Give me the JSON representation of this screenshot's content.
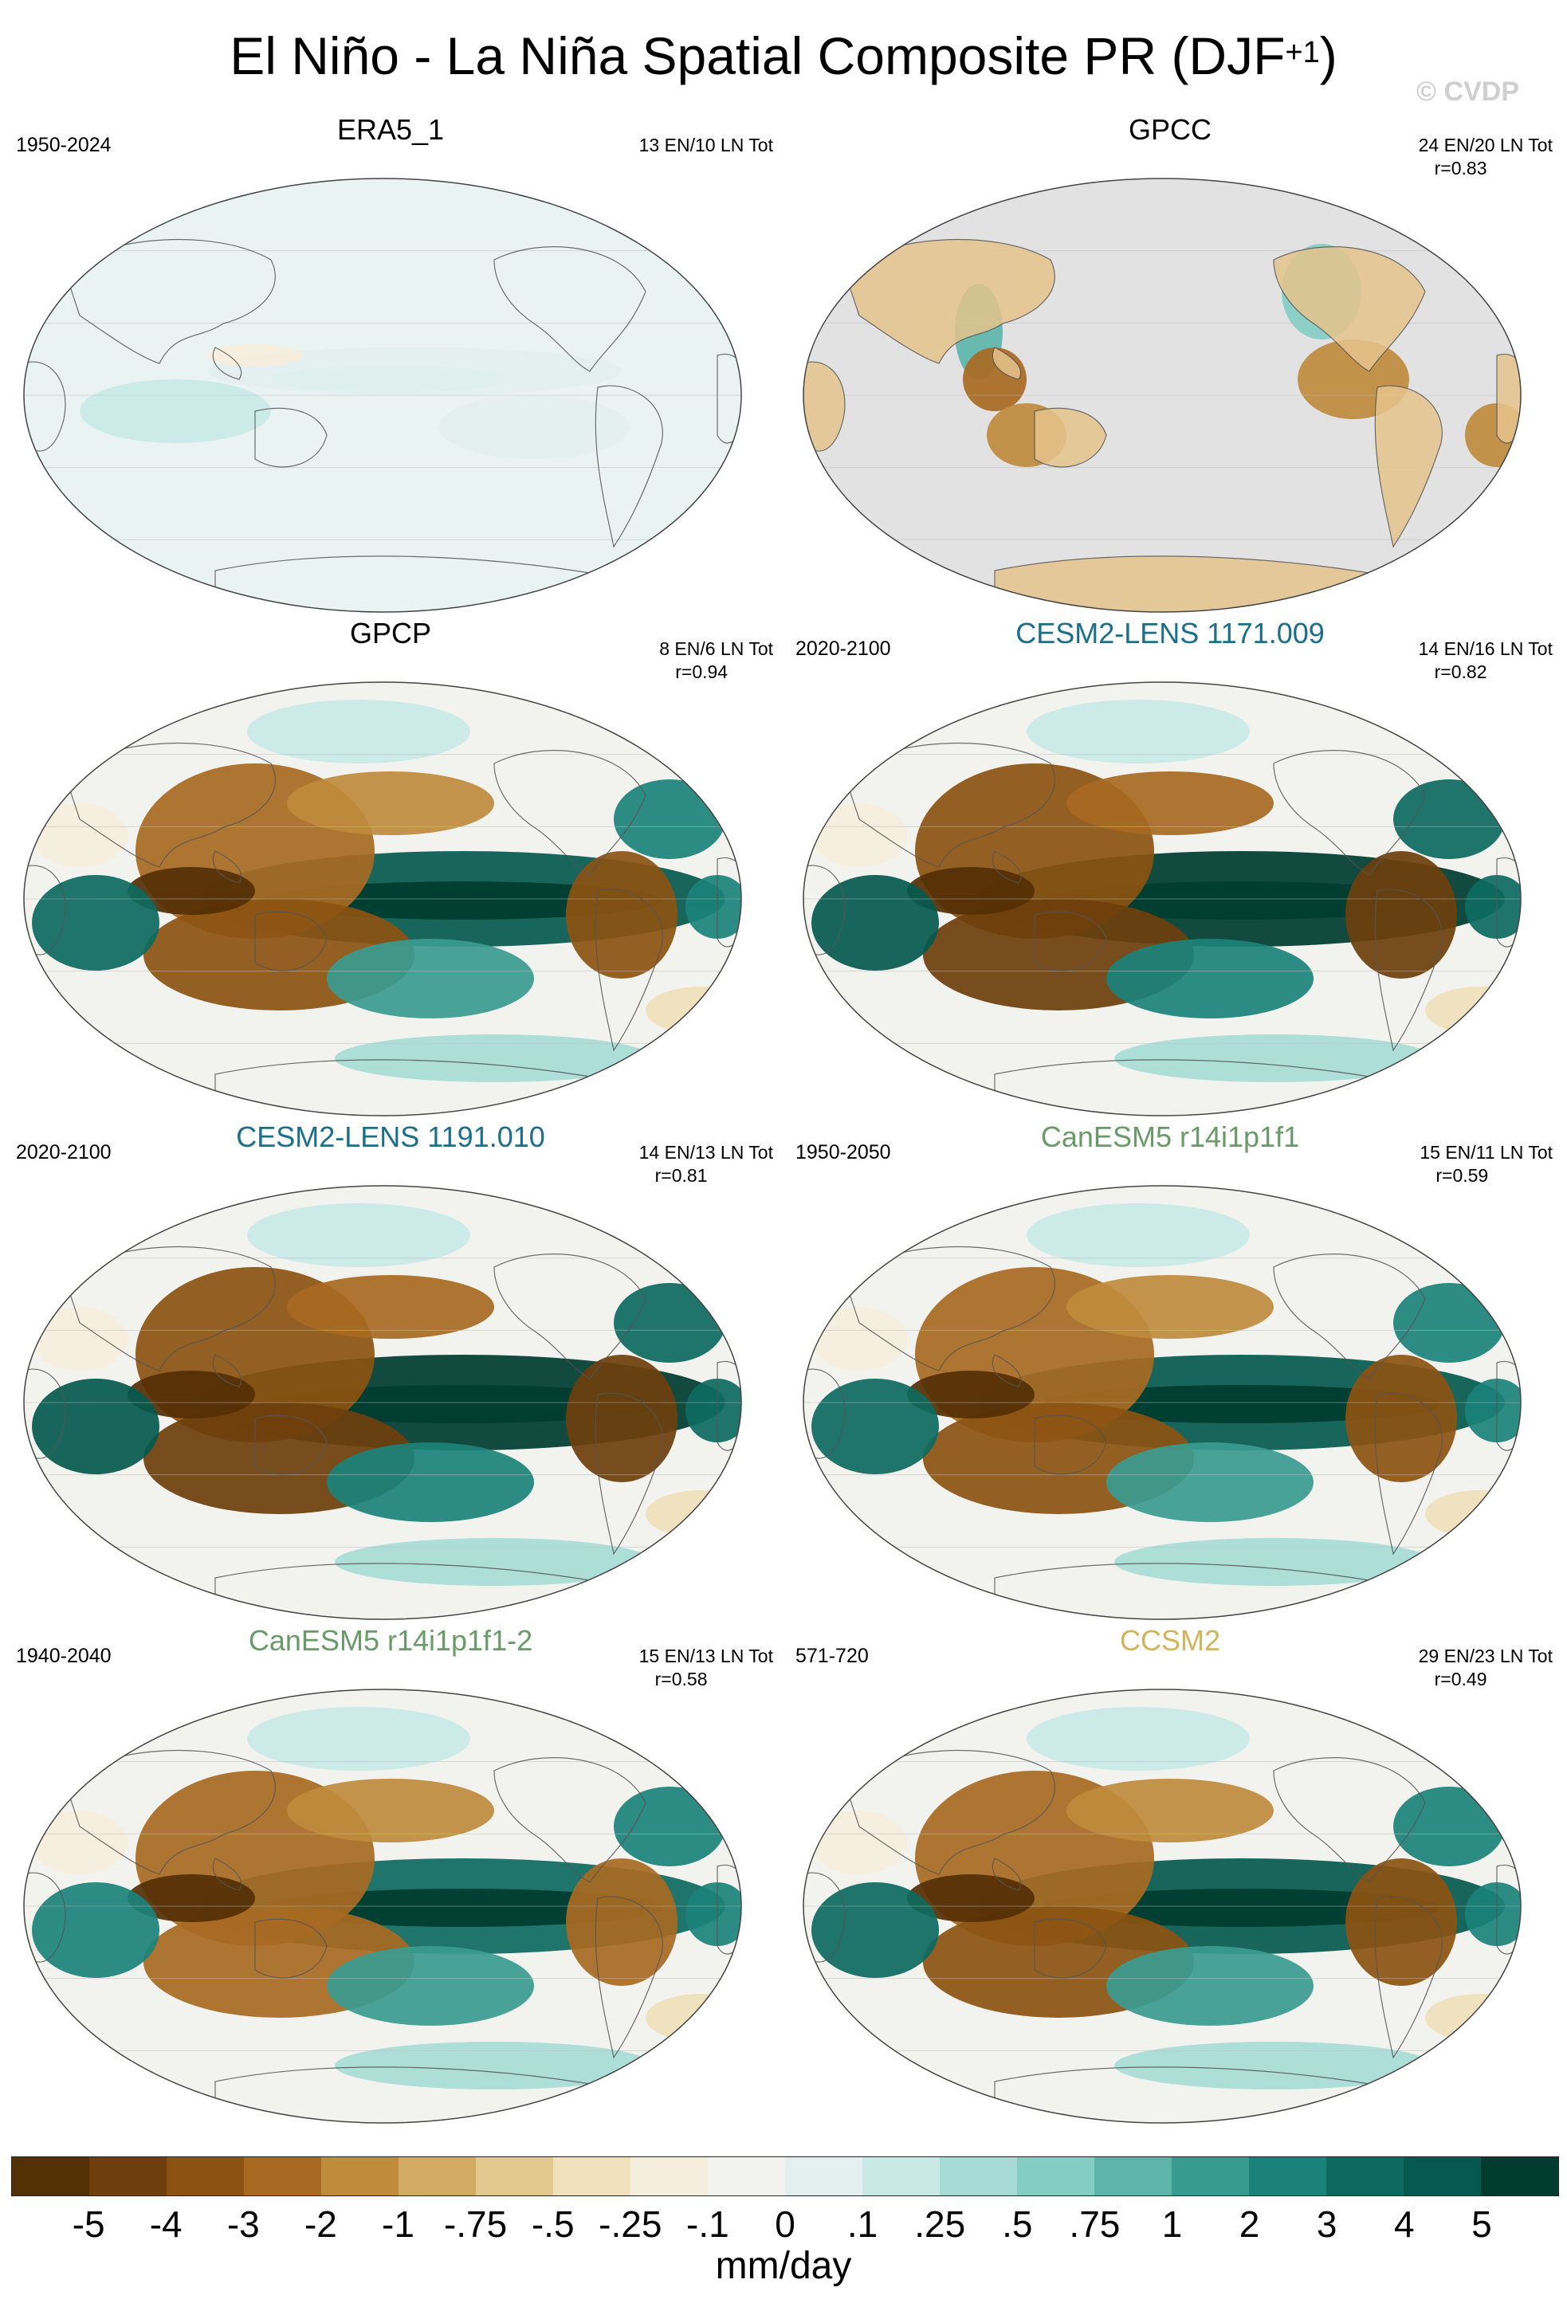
{
  "figure": {
    "title": "El Niño - La Niña Spatial Composite PR (DJF",
    "title_superscript": "+1",
    "title_close": ")",
    "credit": "© CVDP"
  },
  "panels": [
    {
      "title": "ERA5_1",
      "title_color": "#000000",
      "period": "1950-2024",
      "stats_line1": "13 EN/10 LN Tot",
      "stats_line2": "",
      "ocean": "on",
      "intensity": 0.15
    },
    {
      "title": "GPCC",
      "title_color": "#000000",
      "period": "",
      "stats_line1": "24 EN/20 LN Tot",
      "stats_line2": "r=0.83",
      "ocean": "off",
      "intensity": 0.75
    },
    {
      "title": "GPCP",
      "title_color": "#000000",
      "period": "",
      "stats_line1": "8 EN/6 LN Tot",
      "stats_line2": "r=0.94",
      "ocean": "on",
      "intensity": 0.9
    },
    {
      "title": "CESM2-LENS 1171.009",
      "title_color": "#1a6f8a",
      "period": "2020-2100",
      "stats_line1": "14 EN/16 LN Tot",
      "stats_line2": "r=0.82",
      "ocean": "on",
      "intensity": 1.0
    },
    {
      "title": "CESM2-LENS 1191.010",
      "title_color": "#1a6f8a",
      "period": "2020-2100",
      "stats_line1": "14 EN/13 LN Tot",
      "stats_line2": "r=0.81",
      "ocean": "on",
      "intensity": 1.0
    },
    {
      "title": "CanESM5 r14i1p1f1",
      "title_color": "#6a9a6a",
      "period": "1950-2050",
      "stats_line1": "15 EN/11 LN Tot",
      "stats_line2": "r=0.59",
      "ocean": "on",
      "intensity": 0.85
    },
    {
      "title": "CanESM5 r14i1p1f1-2",
      "title_color": "#6a9a6a",
      "period": "1940-2040",
      "stats_line1": "15 EN/13 LN Tot",
      "stats_line2": "r=0.58",
      "ocean": "on",
      "intensity": 0.8
    },
    {
      "title": "CCSM2",
      "title_color": "#d2b45a",
      "period": "571-720",
      "stats_line1": "29 EN/23 LN Tot",
      "stats_line2": "r=0.49",
      "ocean": "on",
      "intensity": 0.85
    }
  ],
  "colorbar": {
    "colors": [
      "#543005",
      "#6e3f0c",
      "#8c5211",
      "#a86a22",
      "#c08b3d",
      "#d3aa62",
      "#e4c98f",
      "#f0e0bb",
      "#f6eedc",
      "#f2f2ee",
      "#e3f0ef",
      "#c9e9e6",
      "#a7dcd6",
      "#84cdc4",
      "#5db5aa",
      "#399b90",
      "#1b8279",
      "#0d6a60",
      "#05594f",
      "#003c30"
    ],
    "labels": [
      "-5",
      "-4",
      "-3",
      "-2",
      "-1",
      "-.75",
      "-.5",
      "-.25",
      "-.1",
      "0",
      ".1",
      ".25",
      ".5",
      ".75",
      "1",
      "2",
      "3",
      "4",
      "5"
    ],
    "units": "mm/day"
  }
}
